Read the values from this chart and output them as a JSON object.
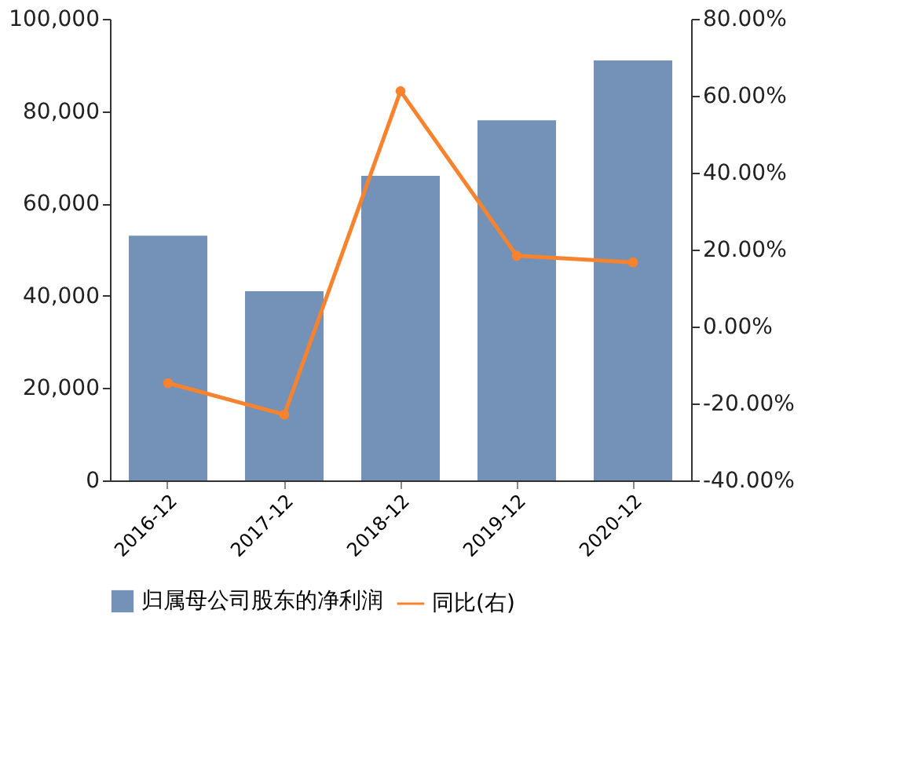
{
  "chart_data": {
    "type": "bar",
    "categories": [
      "2016-12",
      "2017-12",
      "2018-12",
      "2019-12",
      "2020-12"
    ],
    "series": [
      {
        "name": "归属母公司股东的净利润",
        "color": "#7491b7",
        "values": [
          53000,
          41000,
          66000,
          78000,
          91000
        ]
      },
      {
        "name": "同比(右)",
        "type": "line",
        "axis": "y2",
        "color": "#f7832e",
        "marker": "circle",
        "values": [
          -14.7,
          -22.9,
          61.2,
          18.4,
          16.7
        ]
      }
    ],
    "ylim": [
      0,
      100000
    ],
    "yticks": [
      {
        "value": 0,
        "label": "0"
      },
      {
        "value": 20000,
        "label": "20,000"
      },
      {
        "value": 40000,
        "label": "40,000"
      },
      {
        "value": 60000,
        "label": "60,000"
      },
      {
        "value": 80000,
        "label": "80,000"
      },
      {
        "value": 100000,
        "label": "100,000"
      }
    ],
    "y2lim": [
      -40,
      80
    ],
    "y2ticks": [
      {
        "value": -40,
        "label": "-40.00%"
      },
      {
        "value": -20,
        "label": "-20.00%"
      },
      {
        "value": 0,
        "label": "0.00%"
      },
      {
        "value": 20,
        "label": "20.00%"
      },
      {
        "value": 40,
        "label": "40.00%"
      },
      {
        "value": 60,
        "label": "60.00%"
      },
      {
        "value": 80,
        "label": "80.00%"
      }
    ],
    "grid": false,
    "legend": "bottom"
  }
}
